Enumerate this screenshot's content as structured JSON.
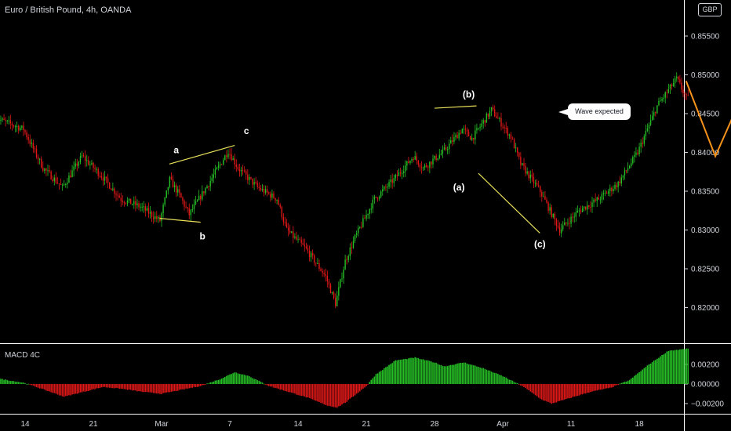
{
  "header": {
    "title": "Euro / British Pound, 4h, OANDA",
    "currency": "GBP"
  },
  "callout": {
    "text": "Wave expected"
  },
  "colors": {
    "bull": "#26c026",
    "bear": "#e01818",
    "yellow_wave": "#e8e05a",
    "orange_projection": "#f7931a",
    "grid": "#ffffff"
  },
  "chart_data": [
    {
      "type": "candlestick",
      "title": "Euro / British Pound, 4h, OANDA",
      "y_ticks": [
        "0.85500",
        "0.85000",
        "0.84500",
        "0.84000",
        "0.83500",
        "0.83000",
        "0.82500",
        "0.82000"
      ],
      "y_tick_values": [
        0.855,
        0.85,
        0.845,
        0.84,
        0.835,
        0.83,
        0.825,
        0.82
      ],
      "ylim": [
        0.8168,
        0.8588
      ],
      "x_ticks": [
        "14",
        "21",
        "Mar",
        "7",
        "14",
        "21",
        "28",
        "Apr",
        "11",
        "18"
      ],
      "x_tick_values": [
        0,
        7,
        14,
        21,
        28,
        35,
        42,
        49,
        56,
        63
      ],
      "x_unit": "days from 14 Feb",
      "close_path": [
        [
          -3,
          0.8445
        ],
        [
          0,
          0.843
        ],
        [
          2,
          0.838
        ],
        [
          4,
          0.8355
        ],
        [
          6,
          0.8395
        ],
        [
          8,
          0.837
        ],
        [
          10,
          0.834
        ],
        [
          12,
          0.833
        ],
        [
          14,
          0.8312
        ],
        [
          15,
          0.8365
        ],
        [
          16,
          0.8345
        ],
        [
          17,
          0.832
        ],
        [
          19,
          0.836
        ],
        [
          21,
          0.8402
        ],
        [
          22,
          0.838
        ],
        [
          24,
          0.8355
        ],
        [
          26,
          0.834
        ],
        [
          27,
          0.83
        ],
        [
          29,
          0.8275
        ],
        [
          31,
          0.824
        ],
        [
          32,
          0.8205
        ],
        [
          33,
          0.826
        ],
        [
          34,
          0.829
        ],
        [
          36,
          0.834
        ],
        [
          38,
          0.8365
        ],
        [
          40,
          0.8395
        ],
        [
          41,
          0.838
        ],
        [
          43,
          0.84
        ],
        [
          45,
          0.843
        ],
        [
          46,
          0.8418
        ],
        [
          48,
          0.8455
        ],
        [
          50,
          0.842
        ],
        [
          51,
          0.8385
        ],
        [
          53,
          0.835
        ],
        [
          55,
          0.83
        ],
        [
          57,
          0.8325
        ],
        [
          59,
          0.834
        ],
        [
          61,
          0.836
        ],
        [
          63,
          0.84
        ],
        [
          65,
          0.846
        ],
        [
          67,
          0.8495
        ],
        [
          68,
          0.847
        ]
      ],
      "wave_labels": [
        {
          "text": "a",
          "x": 15.5,
          "y": 0.8403
        },
        {
          "text": "b",
          "x": 18.2,
          "y": 0.8292
        },
        {
          "text": "c",
          "x": 22.7,
          "y": 0.8428
        },
        {
          "text": "(b)",
          "x": 45.5,
          "y": 0.8475
        },
        {
          "text": "(a)",
          "x": 44.5,
          "y": 0.8355
        },
        {
          "text": "(c)",
          "x": 52.8,
          "y": 0.8282
        }
      ],
      "wave_lines": [
        [
          [
            14.8,
            0.8385
          ],
          [
            21.5,
            0.8409
          ]
        ],
        [
          [
            13.8,
            0.8315
          ],
          [
            18.0,
            0.831
          ]
        ],
        [
          [
            42.0,
            0.8457
          ],
          [
            46.3,
            0.846
          ]
        ],
        [
          [
            46.5,
            0.8373
          ],
          [
            52.8,
            0.8296
          ]
        ]
      ],
      "projection": [
        [
          67.8,
          0.8492
        ],
        [
          70.8,
          0.8395
        ],
        [
          75.8,
          0.8537
        ]
      ]
    },
    {
      "type": "histogram",
      "title": "MACD 4C",
      "y_ticks": [
        "0.00200",
        "0.00000",
        "−0.00200"
      ],
      "y_tick_values": [
        0.002,
        0.0,
        -0.002
      ],
      "ylim": [
        -0.0029,
        0.0036
      ],
      "keypoints": [
        [
          -3,
          0.0006
        ],
        [
          0,
          0.0001
        ],
        [
          2,
          -0.0006
        ],
        [
          4,
          -0.0013
        ],
        [
          6,
          -0.0008
        ],
        [
          8,
          -0.0003
        ],
        [
          10,
          -0.0005
        ],
        [
          12,
          -0.0008
        ],
        [
          14,
          -0.001
        ],
        [
          16,
          -0.0006
        ],
        [
          18,
          -0.0002
        ],
        [
          20,
          0.0005
        ],
        [
          21.5,
          0.0012
        ],
        [
          23,
          0.0008
        ],
        [
          25,
          -0.0002
        ],
        [
          27,
          -0.0008
        ],
        [
          29,
          -0.0014
        ],
        [
          31,
          -0.0022
        ],
        [
          32,
          -0.0024
        ],
        [
          33,
          -0.0018
        ],
        [
          34,
          -0.001
        ],
        [
          35,
          -0.0002
        ],
        [
          36,
          0.001
        ],
        [
          38,
          0.0024
        ],
        [
          40,
          0.0027
        ],
        [
          42,
          0.0022
        ],
        [
          43,
          0.0018
        ],
        [
          45,
          0.0022
        ],
        [
          47,
          0.0016
        ],
        [
          49,
          0.0008
        ],
        [
          51,
          -0.0002
        ],
        [
          53,
          -0.0016
        ],
        [
          54,
          -0.002
        ],
        [
          56,
          -0.0014
        ],
        [
          58,
          -0.0008
        ],
        [
          60,
          -0.0004
        ],
        [
          62,
          0.0004
        ],
        [
          64,
          0.002
        ],
        [
          66,
          0.0034
        ],
        [
          68,
          0.0036
        ]
      ]
    }
  ]
}
